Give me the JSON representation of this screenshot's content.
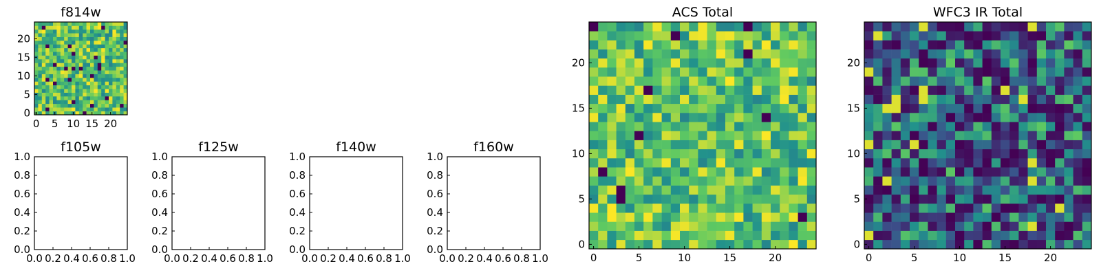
{
  "chart_data": [
    {
      "type": "heatmap",
      "title": "f814w",
      "grid_size": 25,
      "seed": 814,
      "xlim": [
        -0.5,
        24.5
      ],
      "ylim": [
        -0.5,
        24.5
      ],
      "xticks": [
        0,
        5,
        10,
        15,
        20
      ],
      "yticks": [
        0,
        5,
        10,
        15,
        20
      ],
      "colormap": "viridis",
      "grid": false
    },
    {
      "type": "heatmap",
      "title": "ACS Total",
      "grid_size": 25,
      "seed": 3131,
      "xlim": [
        -0.5,
        24.5
      ],
      "ylim": [
        -0.5,
        24.5
      ],
      "xticks": [
        0,
        5,
        10,
        15,
        20
      ],
      "yticks": [
        0,
        5,
        10,
        15,
        20
      ],
      "colormap": "viridis",
      "grid": false
    },
    {
      "type": "heatmap",
      "title": "WFC3 IR Total",
      "grid_size": 25,
      "seed": 7777,
      "xlim": [
        -0.5,
        24.5
      ],
      "ylim": [
        -0.5,
        24.5
      ],
      "xticks": [
        0,
        5,
        10,
        15,
        20
      ],
      "yticks": [
        0,
        5,
        10,
        15,
        20
      ],
      "colormap": "viridis",
      "grid": false
    },
    {
      "type": "scatter",
      "title": "f105w",
      "xlim": [
        0.0,
        1.0
      ],
      "ylim": [
        0.0,
        1.0
      ],
      "xticks": [
        "0.0",
        "0.2",
        "0.4",
        "0.6",
        "0.8",
        "1.0"
      ],
      "yticks": [
        "0.0",
        "0.2",
        "0.4",
        "0.6",
        "0.8",
        "1.0"
      ],
      "x": [],
      "y": []
    },
    {
      "type": "scatter",
      "title": "f125w",
      "xlim": [
        0.0,
        1.0
      ],
      "ylim": [
        0.0,
        1.0
      ],
      "xticks": [
        "0.0",
        "0.2",
        "0.4",
        "0.6",
        "0.8",
        "1.0"
      ],
      "yticks": [
        "0.0",
        "0.2",
        "0.4",
        "0.6",
        "0.8",
        "1.0"
      ],
      "x": [],
      "y": []
    },
    {
      "type": "scatter",
      "title": "f140w",
      "xlim": [
        0.0,
        1.0
      ],
      "ylim": [
        0.0,
        1.0
      ],
      "xticks": [
        "0.0",
        "0.2",
        "0.4",
        "0.6",
        "0.8",
        "1.0"
      ],
      "yticks": [
        "0.0",
        "0.2",
        "0.4",
        "0.6",
        "0.8",
        "1.0"
      ],
      "x": [],
      "y": []
    },
    {
      "type": "scatter",
      "title": "f160w",
      "xlim": [
        0.0,
        1.0
      ],
      "ylim": [
        0.0,
        1.0
      ],
      "xticks": [
        "0.0",
        "0.2",
        "0.4",
        "0.6",
        "0.8",
        "1.0"
      ],
      "yticks": [
        "0.0",
        "0.2",
        "0.4",
        "0.6",
        "0.8",
        "1.0"
      ],
      "x": [],
      "y": []
    }
  ]
}
